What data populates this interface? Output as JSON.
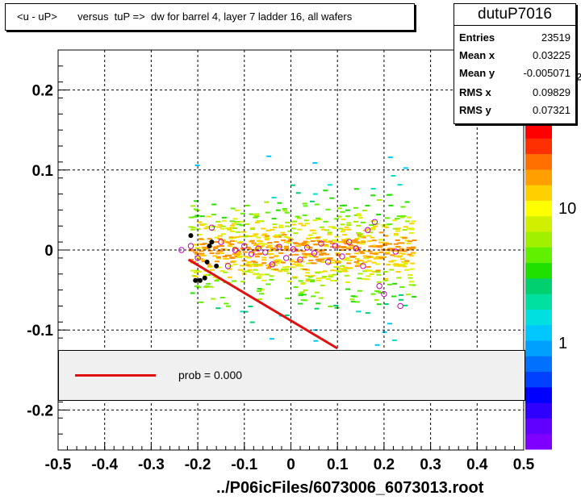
{
  "title": "<u - uP>       versus  tuP =>  dw for barrel 4, layer 7 ladder 16, all wafers",
  "stats": {
    "name": "dutuP7016",
    "rows": [
      {
        "k": "Entries",
        "v": "23519"
      },
      {
        "k": "Mean x",
        "v": "0.03225"
      },
      {
        "k": "Mean y",
        "v": "-0.005071"
      },
      {
        "k": "RMS x",
        "v": "0.09829"
      },
      {
        "k": "RMS y",
        "v": "0.07321"
      }
    ]
  },
  "legend": {
    "label": "prob = 0.000",
    "line_color": "#e01010"
  },
  "footer": "../P06icFiles/6073006_6073013.root",
  "colors": {
    "fit_line": "#e01010",
    "profile_marker": "#c000c0",
    "axis": "#000000",
    "grid": "#000000"
  },
  "chart_data": {
    "type": "heatmap",
    "xlim": [
      -0.5,
      0.5
    ],
    "ylim": [
      -0.25,
      0.25
    ],
    "x_ticks": [
      "-0.5",
      "-0.4",
      "-0.3",
      "-0.2",
      "-0.1",
      "0",
      "0.1",
      "0.2",
      "0.3",
      "0.4",
      "0.5"
    ],
    "y_ticks": [
      "-0.2",
      "-0.1",
      "0",
      "0.1",
      "0.2"
    ],
    "z_ticks": [
      "1",
      "10",
      "10²"
    ],
    "grid": true,
    "fit_line": {
      "x": [
        -0.22,
        0.1
      ],
      "y": [
        -0.012,
        -0.123
      ]
    },
    "profile_points": [
      {
        "x": -0.235,
        "y": 0.0
      },
      {
        "x": -0.215,
        "y": 0.005
      },
      {
        "x": -0.2,
        "y": -0.01
      },
      {
        "x": -0.17,
        "y": 0.028
      },
      {
        "x": -0.15,
        "y": 0.01
      },
      {
        "x": -0.135,
        "y": -0.02
      },
      {
        "x": -0.12,
        "y": 0.0
      },
      {
        "x": -0.1,
        "y": 0.005
      },
      {
        "x": -0.085,
        "y": -0.005
      },
      {
        "x": -0.07,
        "y": 0.002
      },
      {
        "x": -0.055,
        "y": -0.003
      },
      {
        "x": -0.04,
        "y": -0.018
      },
      {
        "x": -0.025,
        "y": 0.004
      },
      {
        "x": -0.01,
        "y": -0.01
      },
      {
        "x": 0.005,
        "y": 0.001
      },
      {
        "x": 0.02,
        "y": -0.012
      },
      {
        "x": 0.035,
        "y": 0.003
      },
      {
        "x": 0.05,
        "y": -0.004
      },
      {
        "x": 0.065,
        "y": 0.008
      },
      {
        "x": 0.08,
        "y": -0.015
      },
      {
        "x": 0.095,
        "y": 0.005
      },
      {
        "x": 0.11,
        "y": -0.008
      },
      {
        "x": 0.125,
        "y": 0.01
      },
      {
        "x": 0.14,
        "y": 0.002
      },
      {
        "x": 0.155,
        "y": -0.02
      },
      {
        "x": 0.165,
        "y": 0.025
      },
      {
        "x": 0.18,
        "y": 0.035
      },
      {
        "x": 0.19,
        "y": -0.045
      },
      {
        "x": 0.2,
        "y": -0.055
      },
      {
        "x": 0.225,
        "y": -0.002
      },
      {
        "x": 0.235,
        "y": -0.07
      }
    ],
    "black_points": [
      {
        "x": -0.215,
        "y": 0.018
      },
      {
        "x": -0.205,
        "y": -0.038
      },
      {
        "x": -0.195,
        "y": -0.038
      },
      {
        "x": -0.185,
        "y": -0.035
      },
      {
        "x": -0.18,
        "y": -0.015
      },
      {
        "x": -0.175,
        "y": 0.005
      },
      {
        "x": -0.17,
        "y": 0.01
      },
      {
        "x": -0.16,
        "y": -0.02
      }
    ]
  }
}
